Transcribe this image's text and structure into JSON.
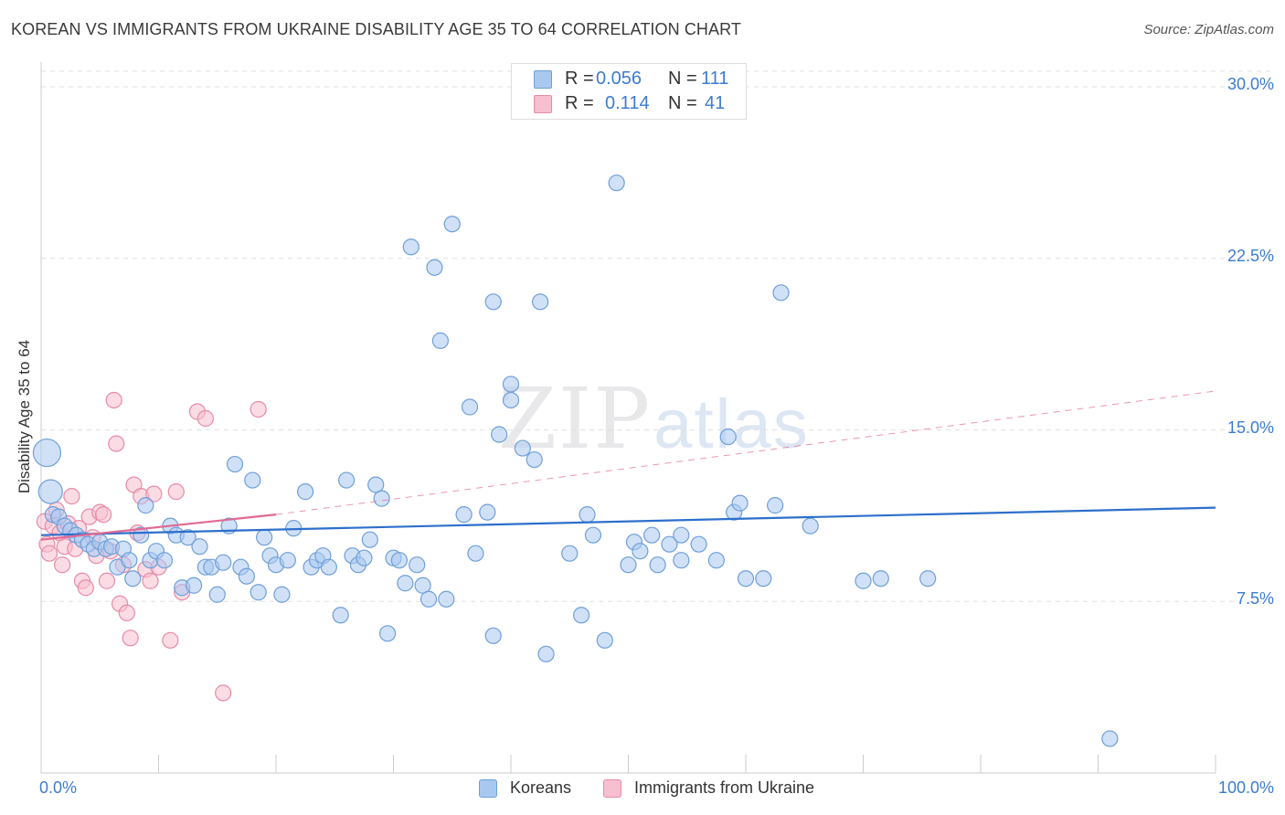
{
  "title": "KOREAN VS IMMIGRANTS FROM UKRAINE DISABILITY AGE 35 TO 64 CORRELATION CHART",
  "source": "Source: ZipAtlas.com",
  "watermark": {
    "zip": "ZIP",
    "atlas": "atlas"
  },
  "legend": {
    "koreans": {
      "r_label": "R =",
      "r_value": "0.056",
      "n_label": "N =",
      "n_value": "111"
    },
    "ukraine": {
      "r_label": "R =",
      "r_value": "0.114",
      "n_label": "N =",
      "n_value": "41"
    }
  },
  "bottom_legend": {
    "koreans": "Koreans",
    "ukraine": "Immigrants from Ukraine"
  },
  "colors": {
    "blue_fill": "#a9c8f0",
    "blue_stroke": "#6f9fd8",
    "blue_line": "#2d6fcc",
    "pink_fill": "#f7bfd0",
    "pink_stroke": "#e88aa8",
    "pink_line": "#e06a93",
    "grid": "#e0e0e0",
    "tick_text": "#3d7cd0"
  },
  "chart_data": {
    "type": "scatter",
    "title": "KOREAN VS IMMIGRANTS FROM UKRAINE DISABILITY AGE 35 TO 64 CORRELATION CHART",
    "xlabel": "",
    "ylabel": "Disability Age 35 to 64",
    "xlim": [
      0,
      100
    ],
    "ylim": [
      0,
      31
    ],
    "x_tick_labels": [
      "0.0%",
      "100.0%"
    ],
    "y_ticks": [
      7.5,
      15.0,
      22.5,
      30.0
    ],
    "y_tick_labels": [
      "7.5%",
      "15.0%",
      "22.5%",
      "30.0%"
    ],
    "grid": true,
    "series": [
      {
        "name": "Koreans",
        "r": 0.056,
        "n": 111,
        "trend": {
          "x": [
            0,
            100
          ],
          "y": [
            10.4,
            11.6
          ],
          "style": "solid"
        },
        "points": [
          [
            0.5,
            14.0,
            "xl"
          ],
          [
            0.8,
            12.3,
            "l"
          ],
          [
            1.0,
            11.3
          ],
          [
            1.5,
            11.2
          ],
          [
            2.0,
            10.8
          ],
          [
            2.5,
            10.6
          ],
          [
            3.0,
            10.4
          ],
          [
            3.5,
            10.2
          ],
          [
            4.0,
            10.0
          ],
          [
            4.5,
            9.8
          ],
          [
            5.0,
            10.1
          ],
          [
            5.5,
            9.8
          ],
          [
            6.0,
            9.9
          ],
          [
            6.5,
            9.0
          ],
          [
            7.0,
            9.8
          ],
          [
            7.5,
            9.3
          ],
          [
            7.8,
            8.5
          ],
          [
            8.5,
            10.4
          ],
          [
            8.9,
            11.7
          ],
          [
            9.3,
            9.3
          ],
          [
            9.8,
            9.7
          ],
          [
            10.5,
            9.3
          ],
          [
            11.0,
            10.8
          ],
          [
            11.5,
            10.4
          ],
          [
            12.0,
            8.1
          ],
          [
            12.5,
            10.3
          ],
          [
            13.0,
            8.2
          ],
          [
            13.5,
            9.9
          ],
          [
            14.0,
            9.0
          ],
          [
            14.5,
            9.0
          ],
          [
            15.0,
            7.8
          ],
          [
            15.5,
            9.2
          ],
          [
            16.0,
            10.8
          ],
          [
            16.5,
            13.5
          ],
          [
            17.0,
            9.0
          ],
          [
            17.5,
            8.6
          ],
          [
            18.0,
            12.8
          ],
          [
            18.5,
            7.9
          ],
          [
            19.0,
            10.3
          ],
          [
            19.5,
            9.5
          ],
          [
            20.0,
            9.1
          ],
          [
            20.5,
            7.8
          ],
          [
            21.0,
            9.3
          ],
          [
            21.5,
            10.7
          ],
          [
            22.5,
            12.3
          ],
          [
            23.0,
            9.0
          ],
          [
            23.5,
            9.3
          ],
          [
            24.0,
            9.5
          ],
          [
            24.5,
            9.0
          ],
          [
            25.5,
            6.9
          ],
          [
            26.0,
            12.8
          ],
          [
            26.5,
            9.5
          ],
          [
            27.0,
            9.1
          ],
          [
            27.5,
            9.4
          ],
          [
            28.0,
            10.2
          ],
          [
            28.5,
            12.6
          ],
          [
            29.0,
            12.0
          ],
          [
            29.5,
            6.1
          ],
          [
            30.0,
            9.4
          ],
          [
            30.5,
            9.3
          ],
          [
            31.0,
            8.3
          ],
          [
            31.5,
            23.0
          ],
          [
            32.0,
            9.1
          ],
          [
            32.5,
            8.2
          ],
          [
            33.0,
            7.6
          ],
          [
            33.5,
            22.1
          ],
          [
            34.0,
            18.9
          ],
          [
            34.5,
            7.6
          ],
          [
            35.0,
            24.0
          ],
          [
            36.0,
            11.3
          ],
          [
            36.5,
            16.0
          ],
          [
            37.0,
            9.6
          ],
          [
            38.0,
            11.4
          ],
          [
            38.5,
            20.6
          ],
          [
            38.5,
            6.0
          ],
          [
            39.0,
            14.8
          ],
          [
            40.0,
            17.0
          ],
          [
            40.0,
            16.3
          ],
          [
            41.0,
            14.2
          ],
          [
            42.0,
            13.7
          ],
          [
            42.5,
            20.6
          ],
          [
            43.0,
            5.2
          ],
          [
            45.0,
            9.6
          ],
          [
            46.0,
            6.9
          ],
          [
            46.5,
            11.3
          ],
          [
            47.0,
            10.4
          ],
          [
            48.0,
            5.8
          ],
          [
            49.0,
            25.8
          ],
          [
            50.0,
            9.1
          ],
          [
            50.5,
            10.1
          ],
          [
            51.0,
            9.7
          ],
          [
            52.0,
            10.4
          ],
          [
            52.5,
            9.1
          ],
          [
            53.5,
            10.0
          ],
          [
            54.5,
            10.4
          ],
          [
            54.5,
            9.3
          ],
          [
            56.0,
            10.0
          ],
          [
            57.5,
            9.3
          ],
          [
            58.5,
            14.7
          ],
          [
            59.0,
            11.4
          ],
          [
            59.5,
            11.8
          ],
          [
            60.0,
            8.5
          ],
          [
            61.5,
            8.5
          ],
          [
            62.5,
            11.7
          ],
          [
            63.0,
            21.0
          ],
          [
            65.5,
            10.8
          ],
          [
            70.0,
            8.4
          ],
          [
            71.5,
            8.5
          ],
          [
            75.5,
            8.5
          ],
          [
            91.0,
            1.5
          ]
        ]
      },
      {
        "name": "Immigrants from Ukraine",
        "r": 0.114,
        "n": 41,
        "trend": {
          "x": [
            0,
            20
          ],
          "y": [
            10.2,
            11.3
          ],
          "style": "solid",
          "extended": {
            "x": [
              20,
              100
            ],
            "y": [
              11.3,
              16.7
            ],
            "style": "dashed"
          }
        },
        "points": [
          [
            0.3,
            11.0
          ],
          [
            0.5,
            10.0
          ],
          [
            0.7,
            9.6
          ],
          [
            1.0,
            10.8
          ],
          [
            1.3,
            11.5
          ],
          [
            1.6,
            10.5
          ],
          [
            1.8,
            9.1
          ],
          [
            2.0,
            9.9
          ],
          [
            2.3,
            10.9
          ],
          [
            2.6,
            12.1
          ],
          [
            2.9,
            9.8
          ],
          [
            3.2,
            10.7
          ],
          [
            3.5,
            8.4
          ],
          [
            3.8,
            8.1
          ],
          [
            4.1,
            11.2
          ],
          [
            4.4,
            10.3
          ],
          [
            4.7,
            9.5
          ],
          [
            5.0,
            11.4
          ],
          [
            5.3,
            11.3
          ],
          [
            5.6,
            8.4
          ],
          [
            5.9,
            9.7
          ],
          [
            6.2,
            16.3
          ],
          [
            6.4,
            14.4
          ],
          [
            6.7,
            7.4
          ],
          [
            7.0,
            9.1
          ],
          [
            7.3,
            7.0
          ],
          [
            7.6,
            5.9
          ],
          [
            7.9,
            12.6
          ],
          [
            8.2,
            10.5
          ],
          [
            8.5,
            12.1
          ],
          [
            8.9,
            8.9
          ],
          [
            9.3,
            8.4
          ],
          [
            9.6,
            12.2
          ],
          [
            10.0,
            9.0
          ],
          [
            11.0,
            5.8
          ],
          [
            11.5,
            12.3
          ],
          [
            12.0,
            7.9
          ],
          [
            13.3,
            15.8
          ],
          [
            14.0,
            15.5
          ],
          [
            15.5,
            3.5
          ],
          [
            18.5,
            15.9
          ]
        ]
      }
    ]
  }
}
